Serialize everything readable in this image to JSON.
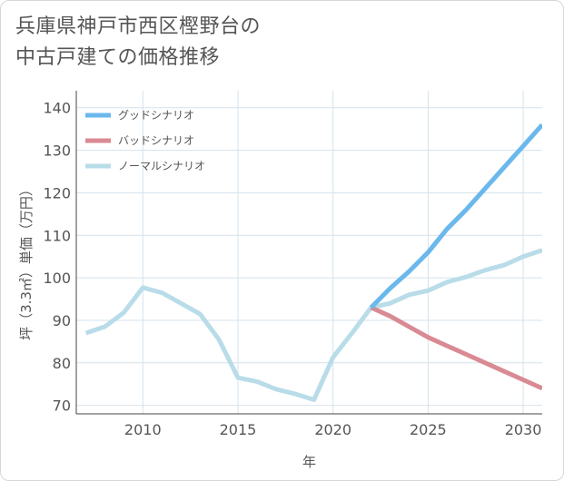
{
  "page_title_line1": "兵庫県神戸市西区樫野台の",
  "page_title_line2": "中古戸建ての価格推移",
  "chart_data": {
    "type": "line",
    "title": "兵庫県神戸市西区樫野台の中古戸建ての価格推移",
    "xlabel": "年",
    "ylabel": "坪（3.3㎡）単価（万円）",
    "xlim": [
      2006.5,
      2031
    ],
    "ylim": [
      68,
      144
    ],
    "x_ticks": [
      2010,
      2015,
      2020,
      2025,
      2030
    ],
    "y_ticks": [
      70,
      80,
      90,
      100,
      110,
      120,
      130,
      140
    ],
    "grid": true,
    "legend_position": "top-left",
    "series": [
      {
        "name": "グッドシナリオ",
        "color": "#6ab8ec",
        "x": [
          2022,
          2023,
          2024,
          2025,
          2026,
          2027,
          2028,
          2029,
          2030,
          2031
        ],
        "y": [
          93,
          97.5,
          101.5,
          106,
          111.5,
          116,
          121,
          126,
          131,
          136
        ]
      },
      {
        "name": "バッドシナリオ",
        "color": "#d98a93",
        "x": [
          2022,
          2023,
          2024,
          2025,
          2026,
          2027,
          2028,
          2029,
          2030,
          2031
        ],
        "y": [
          93,
          91,
          88.5,
          86,
          84,
          82,
          80,
          78,
          76,
          74
        ]
      },
      {
        "name": "ノーマルシナリオ",
        "color": "#b9dce9",
        "x": [
          2007,
          2008,
          2009,
          2010,
          2011,
          2012,
          2013,
          2014,
          2015,
          2016,
          2017,
          2018,
          2019,
          2020,
          2021,
          2022,
          2023,
          2024,
          2025,
          2026,
          2027,
          2028,
          2029,
          2030,
          2031
        ],
        "y": [
          87,
          88.5,
          91.8,
          97.7,
          96.5,
          94,
          91.5,
          85.5,
          76.5,
          75.6,
          73.8,
          72.7,
          71.3,
          81.3,
          87,
          93,
          94,
          96,
          97,
          99,
          100.2,
          101.8,
          103,
          105,
          106.5
        ]
      }
    ]
  }
}
